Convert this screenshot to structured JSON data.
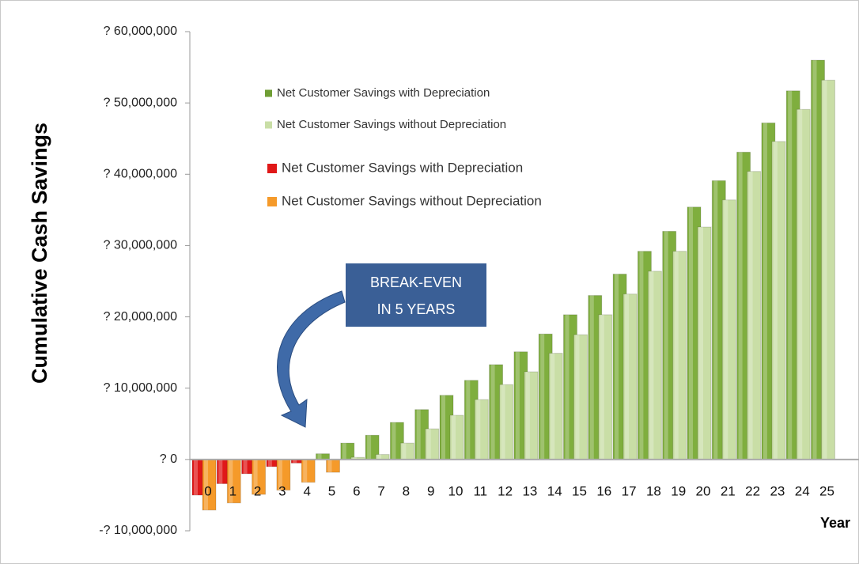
{
  "chart_data": {
    "type": "bar",
    "y_label": "Cumulative Cash Savings",
    "x_label": "Year",
    "annotation": [
      "BREAK-EVEN",
      "IN 5 YEARS"
    ],
    "categories": [
      "0",
      "1",
      "2",
      "3",
      "4",
      "5",
      "6",
      "7",
      "8",
      "9",
      "10",
      "11",
      "12",
      "13",
      "14",
      "15",
      "16",
      "17",
      "18",
      "19",
      "20",
      "21",
      "22",
      "23",
      "24",
      "25"
    ],
    "series": [
      {
        "color": "#7fae3e",
        "negative_color": "#e01818",
        "values": [
          -5000000,
          -3400000,
          -2000000,
          -1000000,
          -500000,
          800000,
          2300000,
          3400000,
          5200000,
          7000000,
          9000000,
          11100000,
          13300000,
          15100000,
          17600000,
          20300000,
          23000000,
          26000000,
          29200000,
          32000000,
          35400000,
          39100000,
          43100000,
          47200000,
          51700000,
          56000000
        ]
      },
      {
        "color": "#c9dea6",
        "negative_color": "#f59a2a",
        "values": [
          -7100000,
          -6100000,
          -4900000,
          -4300000,
          -3200000,
          -1800000,
          300000,
          700000,
          2300000,
          4300000,
          6200000,
          8400000,
          10500000,
          12300000,
          14900000,
          17500000,
          20300000,
          23200000,
          26400000,
          29200000,
          32600000,
          36400000,
          40400000,
          44600000,
          49100000,
          53200000
        ]
      }
    ],
    "legend": [
      {
        "name": "Net Customer Savings with Depreciation",
        "color": "#6f9e34"
      },
      {
        "name": "Net Customer Savings without Depreciation",
        "color": "#c9dea6"
      },
      {
        "name": "Net Customer Savings with Depreciation",
        "color": "#e01818"
      },
      {
        "name": "Net Customer Savings without Depreciation",
        "color": "#f59a2a"
      }
    ],
    "ylim": [
      -10000000,
      60000000
    ],
    "yticks": [
      {
        "value": -10000000,
        "label": "-? 10,000,000"
      },
      {
        "value": 0,
        "label": "? 0"
      },
      {
        "value": 10000000,
        "label": "? 10,000,000"
      },
      {
        "value": 20000000,
        "label": "? 20,000,000"
      },
      {
        "value": 30000000,
        "label": "? 30,000,000"
      },
      {
        "value": 40000000,
        "label": "? 40,000,000"
      },
      {
        "value": 50000000,
        "label": "? 50,000,000"
      },
      {
        "value": 60000000,
        "label": "? 60,000,000"
      }
    ],
    "grid": false
  }
}
